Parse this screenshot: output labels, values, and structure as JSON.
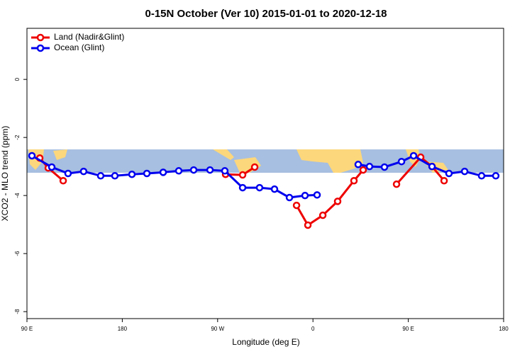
{
  "chart_data": {
    "type": "line",
    "title": "0-15N October (Ver 10)   2015-01-01 to 2020-12-18",
    "x_label": "Longitude (deg E)",
    "y_label": "XCO2 - MLO trend (ppm)",
    "xlim": [
      90,
      540
    ],
    "xticks": [
      {
        "value": 90,
        "label": "90 E"
      },
      {
        "value": 180,
        "label": "180"
      },
      {
        "value": 270,
        "label": "90 W"
      },
      {
        "value": 360,
        "label": "0"
      },
      {
        "value": 450,
        "label": "90 E"
      },
      {
        "value": 540,
        "label": "180"
      }
    ],
    "ylim": [
      -8.24,
      1.76
    ],
    "yticks": [
      0,
      -2,
      -4,
      -6,
      -8
    ],
    "legend": "top-left",
    "series": [
      {
        "name": "Land (Nadir&Glint)",
        "color": "#ee0000",
        "x": [
          102.1,
          110.1,
          124.2,
          null,
          277.5,
          293.6,
          305.0,
          null,
          344.5,
          355.2,
          369.3,
          383.3,
          398.7,
          407.4,
          null,
          438.9,
          461.7,
          472.4,
          483.8
        ],
        "values": [
          -2.71,
          -3.05,
          -3.49,
          null,
          -3.27,
          -3.29,
          -3.02,
          null,
          -4.34,
          -5.02,
          -4.68,
          -4.2,
          -3.49,
          -3.12,
          null,
          -3.61,
          -2.68,
          -3.0,
          -3.49
        ]
      },
      {
        "name": "Ocean (Glint)",
        "color": "#0000ee",
        "x": [
          94.7,
          113.4,
          128.8,
          143.5,
          159.6,
          173.0,
          189.1,
          203.2,
          218.6,
          233.3,
          247.4,
          262.8,
          276.8,
          293.6,
          309.6,
          323.7,
          337.8,
          352.5,
          363.9,
          null,
          402.7,
          413.4,
          427.5,
          443.6,
          455.0,
          472.4,
          488.4,
          503.2,
          519.2,
          532.6
        ],
        "values": [
          -2.63,
          -3.02,
          -3.24,
          -3.17,
          -3.32,
          -3.32,
          -3.27,
          -3.24,
          -3.2,
          -3.15,
          -3.12,
          -3.12,
          -3.15,
          -3.73,
          -3.73,
          -3.78,
          -4.07,
          -4.0,
          -3.98,
          null,
          -2.93,
          -3.0,
          -3.02,
          -2.83,
          -2.63,
          -3.0,
          -3.24,
          -3.17,
          -3.32,
          -3.32
        ]
      }
    ]
  }
}
